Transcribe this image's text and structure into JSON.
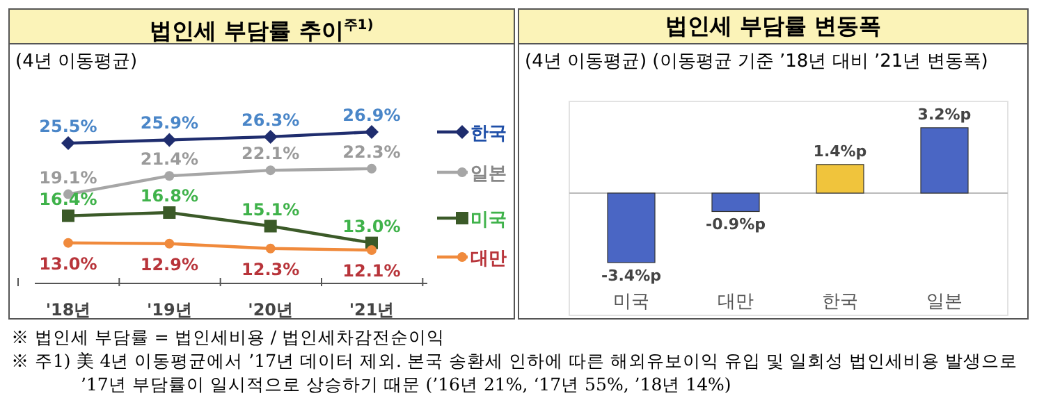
{
  "chart_data": [
    {
      "type": "line",
      "title": "법인세 부담률 추이$^{주1)}$",
      "subtitle": "(4년 이동평균)",
      "categories": [
        "'18년",
        "'19년",
        "'20년",
        "'21년"
      ],
      "series": [
        {
          "name": "한국",
          "color": "#1f2d6e",
          "marker": "diamond",
          "values": [
            25.5,
            25.9,
            26.3,
            26.9
          ],
          "value_labels": [
            "25.5%",
            "25.9%",
            "26.3%",
            "26.9%"
          ]
        },
        {
          "name": "일본",
          "color": "#a6a6a6",
          "marker": "circle",
          "values": [
            19.1,
            21.4,
            22.1,
            22.3
          ],
          "value_labels": [
            "19.1%",
            "21.4%",
            "22.1%",
            "22.3%"
          ]
        },
        {
          "name": "미국",
          "color": "#3b5a28",
          "marker": "square",
          "values": [
            16.4,
            16.8,
            15.1,
            13.0
          ],
          "value_labels": [
            "16.4%",
            "16.8%",
            "15.1%",
            "13.0%"
          ]
        },
        {
          "name": "대만",
          "color": "#f08a3c",
          "marker": "circle",
          "values": [
            13.0,
            12.9,
            12.3,
            12.1
          ],
          "value_labels": [
            "13.0%",
            "12.9%",
            "12.3%",
            "12.1%"
          ]
        }
      ],
      "legend": "right",
      "annotations": [
        "※ 법인세 부담률 = 법인세비용 / 법인세차감전순이익",
        "※ 주1) 美 4년 이동평균에서 ’17년 데이터 제외. 본국 송환세 인하에 따른 해외유보이익 유입 및 일회성 법인세비용 발생으로 ’17년 부담률이 일시적으로 상승하기 때문 (’16년 21%, ‘17년 55%, ’18년 14%)"
      ]
    },
    {
      "type": "bar",
      "title": "법인세 부담률 변동폭",
      "subtitle": "(4년 이동평균) (이동평균 기준 ’18년 대비 ’21년 변동폭)",
      "categories": [
        "미국",
        "대만",
        "한국",
        "일본"
      ],
      "values": [
        -3.4,
        -0.9,
        1.4,
        3.2
      ],
      "colors": [
        "#4a66c4",
        "#4a66c4",
        "#f0c43c",
        "#4a66c4"
      ],
      "value_labels": [
        "-3.4%p",
        "-0.9%p",
        "1.4%p",
        "3.2%p"
      ]
    }
  ]
}
